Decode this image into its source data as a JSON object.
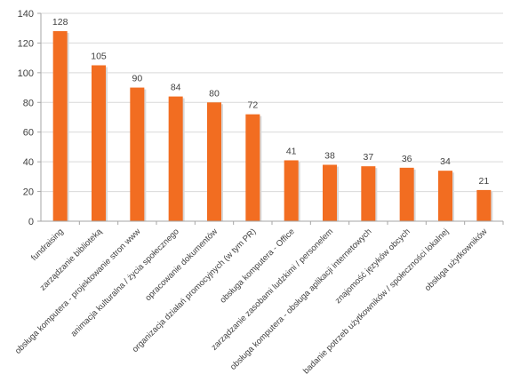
{
  "chart_data": {
    "type": "bar",
    "categories": [
      "fundraising",
      "zarządzanie biblioteką",
      "obsługa komputera - projektowanie stron www",
      "animacja kulturalna / życia społecznego",
      "opracowanie dokumentów",
      "organizacja działań promocyjnych (w tym PR)",
      "obsługa komputera - Office",
      "zarządzanie zasobami ludzkimi / personelem",
      "obsługa komputera - obsługa aplikacji internetowych",
      "znajomość języków obcych",
      "badanie potrzeb użytkowników / społeczności lokalnej",
      "obsługa użytkowników"
    ],
    "values": [
      128,
      105,
      90,
      84,
      80,
      72,
      41,
      38,
      37,
      36,
      34,
      21
    ],
    "value_labels": [
      "128",
      "105",
      "90",
      "84",
      "80",
      "72",
      "41",
      "38",
      "37",
      "36",
      "34",
      "21"
    ],
    "ylim": [
      0,
      140
    ],
    "y_ticks": [
      0,
      20,
      40,
      60,
      80,
      100,
      120,
      140
    ],
    "y_tick_labels": [
      "0",
      "20",
      "40",
      "60",
      "80",
      "100",
      "120",
      "140"
    ],
    "gridlines": true,
    "legend": "none",
    "bar_color": "#f26d21",
    "bar_shadow_color": "#d9d9d9",
    "axis_color": "#a6a6a6",
    "grid_color": "#d9d9d9"
  }
}
